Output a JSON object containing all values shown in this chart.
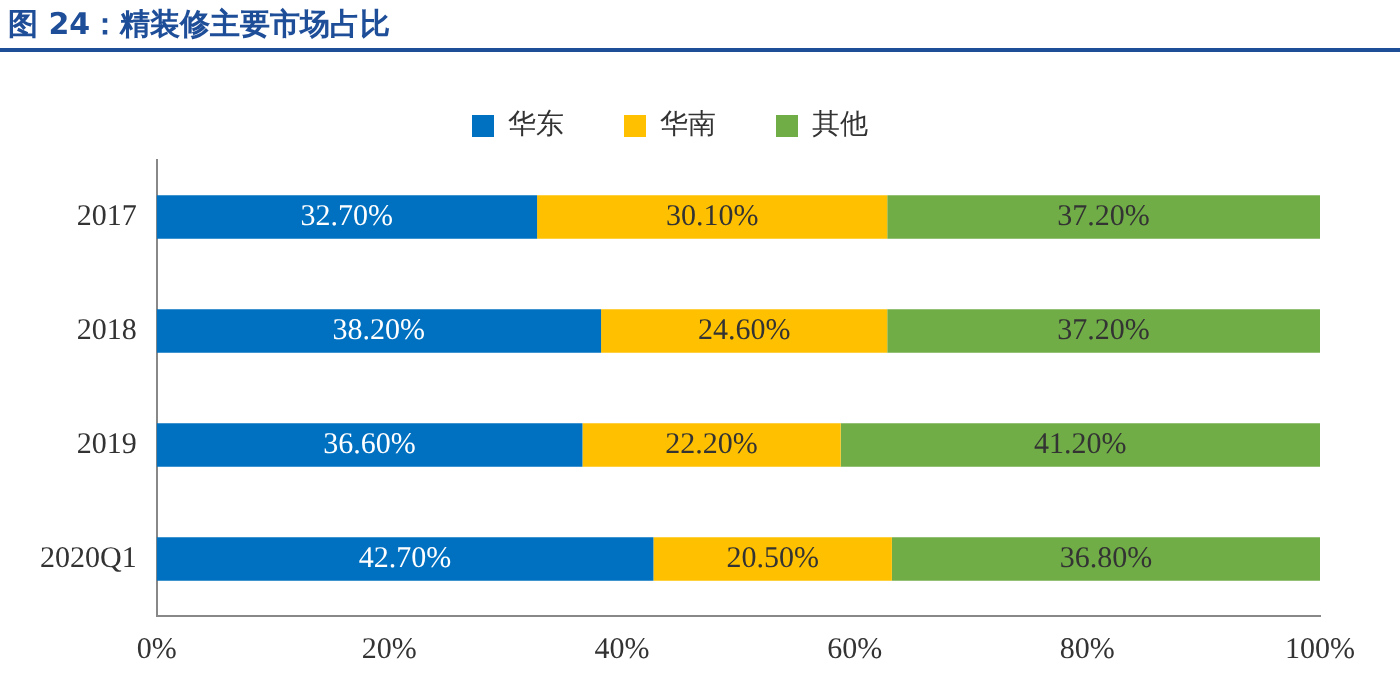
{
  "chart_data": {
    "type": "bar",
    "title": "图 24：精装修主要市场占比",
    "orientation": "horizontal",
    "stacked": true,
    "categories": [
      "2017",
      "2018",
      "2019",
      "2020Q1"
    ],
    "series": [
      {
        "name": "华东",
        "color": "#0070c0",
        "values": [
          32.7,
          38.2,
          36.6,
          42.7
        ],
        "value_labels": [
          "32.70%",
          "38.20%",
          "36.60%",
          "42.70%"
        ]
      },
      {
        "name": "华南",
        "color": "#ffc000",
        "values": [
          30.1,
          24.6,
          22.2,
          20.5
        ],
        "value_labels": [
          "30.10%",
          "24.60%",
          "22.20%",
          "20.50%"
        ]
      },
      {
        "name": "其他",
        "color": "#70ad47",
        "values": [
          37.2,
          37.2,
          41.2,
          36.8
        ],
        "value_labels": [
          "37.20%",
          "37.20%",
          "41.20%",
          "36.80%"
        ]
      }
    ],
    "xlim": [
      0,
      100
    ],
    "xticks": [
      {
        "value": 0,
        "label": "0%"
      },
      {
        "value": 20,
        "label": "20%"
      },
      {
        "value": 40,
        "label": "40%"
      },
      {
        "value": 60,
        "label": "60%"
      },
      {
        "value": 80,
        "label": "80%"
      },
      {
        "value": 100,
        "label": "100%"
      }
    ],
    "grid": false,
    "legend": "top"
  }
}
